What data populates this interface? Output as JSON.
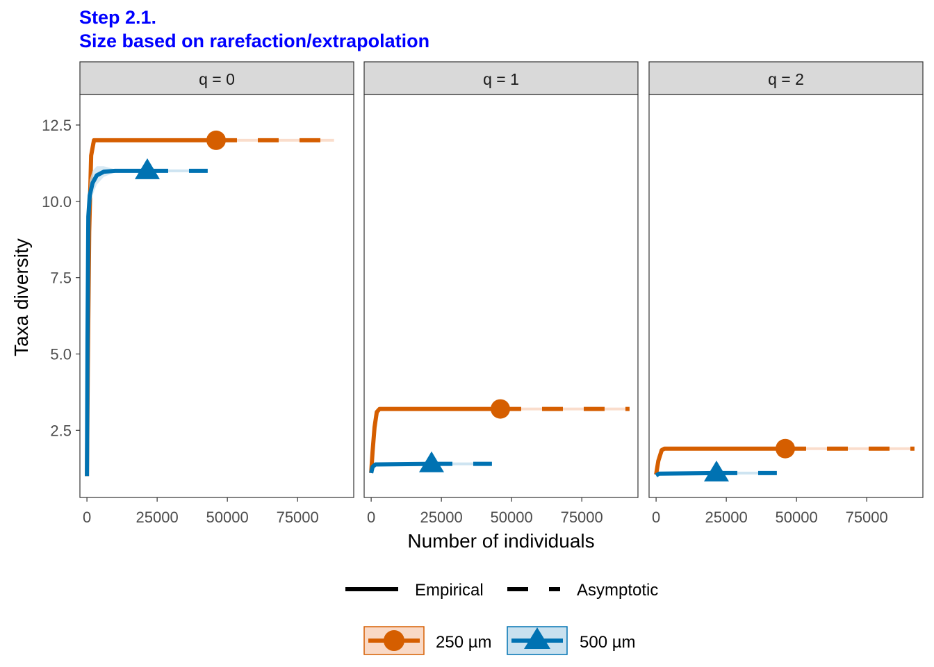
{
  "colors": {
    "site1": "#D55E00",
    "site2": "#0072B2",
    "site1_fill": "#F9D9C6",
    "site2_fill": "#C9E1EF",
    "strip_bg": "#D9D9D9",
    "text": "#000000",
    "title": "#0000FF"
  },
  "chart_data": {
    "type": "line",
    "title_line1": "Step 2.1.",
    "title_line2": "Size based on rarefaction/extrapolation",
    "xlabel": "Number of individuals",
    "ylabel": "Taxa diversity",
    "xlim": [
      -2500,
      95000
    ],
    "ylim": [
      0.3,
      13.5
    ],
    "x_ticks": [
      0,
      25000,
      50000,
      75000
    ],
    "x_tick_labels": [
      "0",
      "25000",
      "50000",
      "75000"
    ],
    "y_ticks": [
      2.5,
      5.0,
      7.5,
      10.0,
      12.5
    ],
    "y_tick_labels": [
      "2.5",
      "5.0",
      "7.5",
      "10.0",
      "12.5"
    ],
    "legend": {
      "linetype": {
        "empirical": "Empirical",
        "asymptotic": "Asymptotic"
      },
      "assemblages": [
        {
          "name": "250 µm",
          "color": "#D55E00",
          "shape": "circle"
        },
        {
          "name": "500 µm",
          "color": "#0072B2",
          "shape": "triangle"
        }
      ]
    },
    "panels": [
      {
        "label": "q = 0",
        "series": [
          {
            "name": "250 µm",
            "observed": {
              "x": 46000,
              "y": 12.0
            },
            "rarefaction": {
              "x": [
                1,
                300,
                800,
                1500,
                2500,
                5000,
                46000
              ],
              "y": [
                1.0,
                4.5,
                9.0,
                11.5,
                12.0,
                12.0,
                12.0
              ]
            },
            "extrapolation": {
              "x": [
                46000,
                88000
              ],
              "y": [
                12.0,
                12.0
              ]
            },
            "ci_upper": [
              1.0,
              5.2,
              9.8,
              11.9,
              12.0,
              12.0,
              12.0
            ],
            "ci_lower": [
              1.0,
              3.8,
              8.2,
              11.0,
              11.9,
              12.0,
              12.0
            ]
          },
          {
            "name": "500 µm",
            "observed": {
              "x": 21500,
              "y": 11.0
            },
            "rarefaction": {
              "x": [
                1,
                200,
                500,
                1000,
                2000,
                3500,
                6000,
                10000,
                21500
              ],
              "y": [
                1.0,
                5.5,
                9.5,
                10.2,
                10.6,
                10.85,
                10.97,
                11.0,
                11.0
              ]
            },
            "extrapolation": {
              "x": [
                21500,
                43000
              ],
              "y": [
                11.0,
                11.0
              ]
            },
            "ci_upper": [
              1.0,
              6.2,
              10.1,
              10.7,
              11.0,
              11.15,
              11.15,
              11.05,
              11.0
            ],
            "ci_lower": [
              1.0,
              4.8,
              8.9,
              9.8,
              10.2,
              10.55,
              10.8,
              10.95,
              11.0
            ]
          }
        ]
      },
      {
        "label": "q = 1",
        "series": [
          {
            "name": "250 µm",
            "observed": {
              "x": 46000,
              "y": 3.2
            },
            "rarefaction": {
              "x": [
                1,
                500,
                1200,
                2000,
                3000,
                46000
              ],
              "y": [
                1.1,
                1.8,
                2.6,
                3.1,
                3.2,
                3.2
              ]
            },
            "extrapolation": {
              "x": [
                46000,
                92000
              ],
              "y": [
                3.2,
                3.2
              ]
            },
            "ci_upper": [
              1.1,
              1.9,
              2.7,
              3.15,
              3.22,
              3.22
            ],
            "ci_lower": [
              1.1,
              1.7,
              2.5,
              3.05,
              3.18,
              3.18
            ]
          },
          {
            "name": "500 µm",
            "observed": {
              "x": 21500,
              "y": 1.4
            },
            "rarefaction": {
              "x": [
                1,
                500,
                1500,
                21500
              ],
              "y": [
                1.1,
                1.3,
                1.38,
                1.4
              ]
            },
            "extrapolation": {
              "x": [
                21500,
                43000
              ],
              "y": [
                1.4,
                1.4
              ]
            },
            "ci_upper": [
              1.1,
              1.33,
              1.41,
              1.42
            ],
            "ci_lower": [
              1.1,
              1.27,
              1.35,
              1.38
            ]
          }
        ]
      },
      {
        "label": "q = 2",
        "series": [
          {
            "name": "250 µm",
            "observed": {
              "x": 46000,
              "y": 1.9
            },
            "rarefaction": {
              "x": [
                1,
                800,
                2000,
                3000,
                46000
              ],
              "y": [
                1.05,
                1.5,
                1.85,
                1.9,
                1.9
              ]
            },
            "extrapolation": {
              "x": [
                46000,
                92000
              ],
              "y": [
                1.9,
                1.9
              ]
            },
            "ci_upper": [
              1.05,
              1.55,
              1.87,
              1.92,
              1.92
            ],
            "ci_lower": [
              1.05,
              1.45,
              1.83,
              1.88,
              1.88
            ]
          },
          {
            "name": "500 µm",
            "observed": {
              "x": 21500,
              "y": 1.1
            },
            "rarefaction": {
              "x": [
                1,
                1000,
                21500
              ],
              "y": [
                1.02,
                1.08,
                1.1
              ]
            },
            "extrapolation": {
              "x": [
                21500,
                43000
              ],
              "y": [
                1.1,
                1.1
              ]
            },
            "ci_upper": [
              1.02,
              1.1,
              1.12
            ],
            "ci_lower": [
              1.02,
              1.06,
              1.08
            ]
          }
        ]
      }
    ]
  }
}
